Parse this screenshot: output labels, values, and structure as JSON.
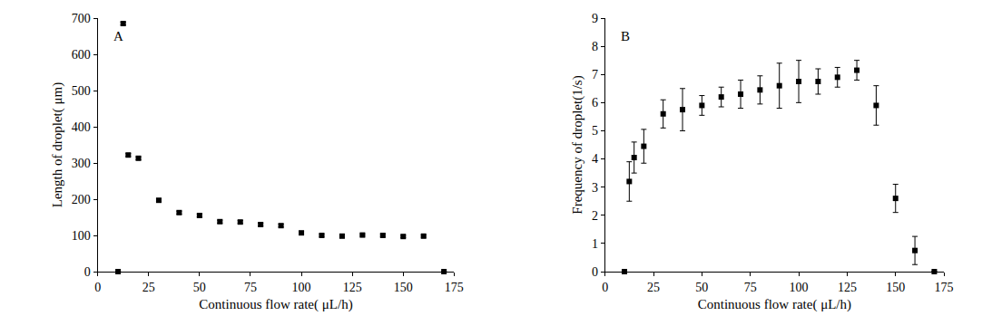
{
  "chart_data": [
    {
      "type": "scatter",
      "annotation": "A",
      "x_label": "Continuous flow rate( μL/h)",
      "y_label": "Length of droplet( μm)",
      "x": [
        10,
        12.5,
        15,
        20,
        30,
        40,
        50,
        60,
        70,
        80,
        90,
        100,
        110,
        120,
        130,
        140,
        150,
        160,
        170
      ],
      "values": [
        0,
        685,
        322,
        313,
        197,
        163,
        155,
        138,
        137,
        130,
        127,
        107,
        100,
        98,
        101,
        100,
        97,
        98,
        0
      ],
      "errors": [
        0,
        4,
        4,
        4,
        4,
        4,
        4,
        4,
        4,
        4,
        4,
        4,
        3,
        3,
        3,
        3,
        3,
        3,
        0
      ],
      "xlim": [
        0,
        175
      ],
      "xticks": [
        0,
        25,
        50,
        75,
        100,
        125,
        150,
        175
      ],
      "ylim": [
        0,
        700
      ],
      "yticks": [
        0,
        100,
        200,
        300,
        400,
        500,
        600,
        700
      ],
      "color": "#000000",
      "marker": "square",
      "grid": false
    },
    {
      "type": "scatter",
      "annotation": "B",
      "x_label": "Continuous flow rate( μL/h)",
      "y_label": "Frequency of droplet(1/s)",
      "x": [
        10,
        12.5,
        15,
        20,
        30,
        40,
        50,
        60,
        70,
        80,
        90,
        100,
        110,
        120,
        130,
        140,
        150,
        160,
        170
      ],
      "values": [
        0,
        3.2,
        4.05,
        4.45,
        5.6,
        5.75,
        5.9,
        6.2,
        6.3,
        6.45,
        6.6,
        6.75,
        6.75,
        6.9,
        7.15,
        5.9,
        2.6,
        0.75,
        0
      ],
      "errors": [
        0,
        0.7,
        0.55,
        0.6,
        0.5,
        0.75,
        0.35,
        0.35,
        0.5,
        0.5,
        0.8,
        0.75,
        0.45,
        0.35,
        0.35,
        0.7,
        0.5,
        0.5,
        0
      ],
      "xlim": [
        0,
        175
      ],
      "xticks": [
        0,
        25,
        50,
        75,
        100,
        125,
        150,
        175
      ],
      "ylim": [
        0,
        9
      ],
      "yticks": [
        0,
        1,
        2,
        3,
        4,
        5,
        6,
        7,
        8,
        9
      ],
      "color": "#000000",
      "marker": "square",
      "grid": false
    }
  ]
}
